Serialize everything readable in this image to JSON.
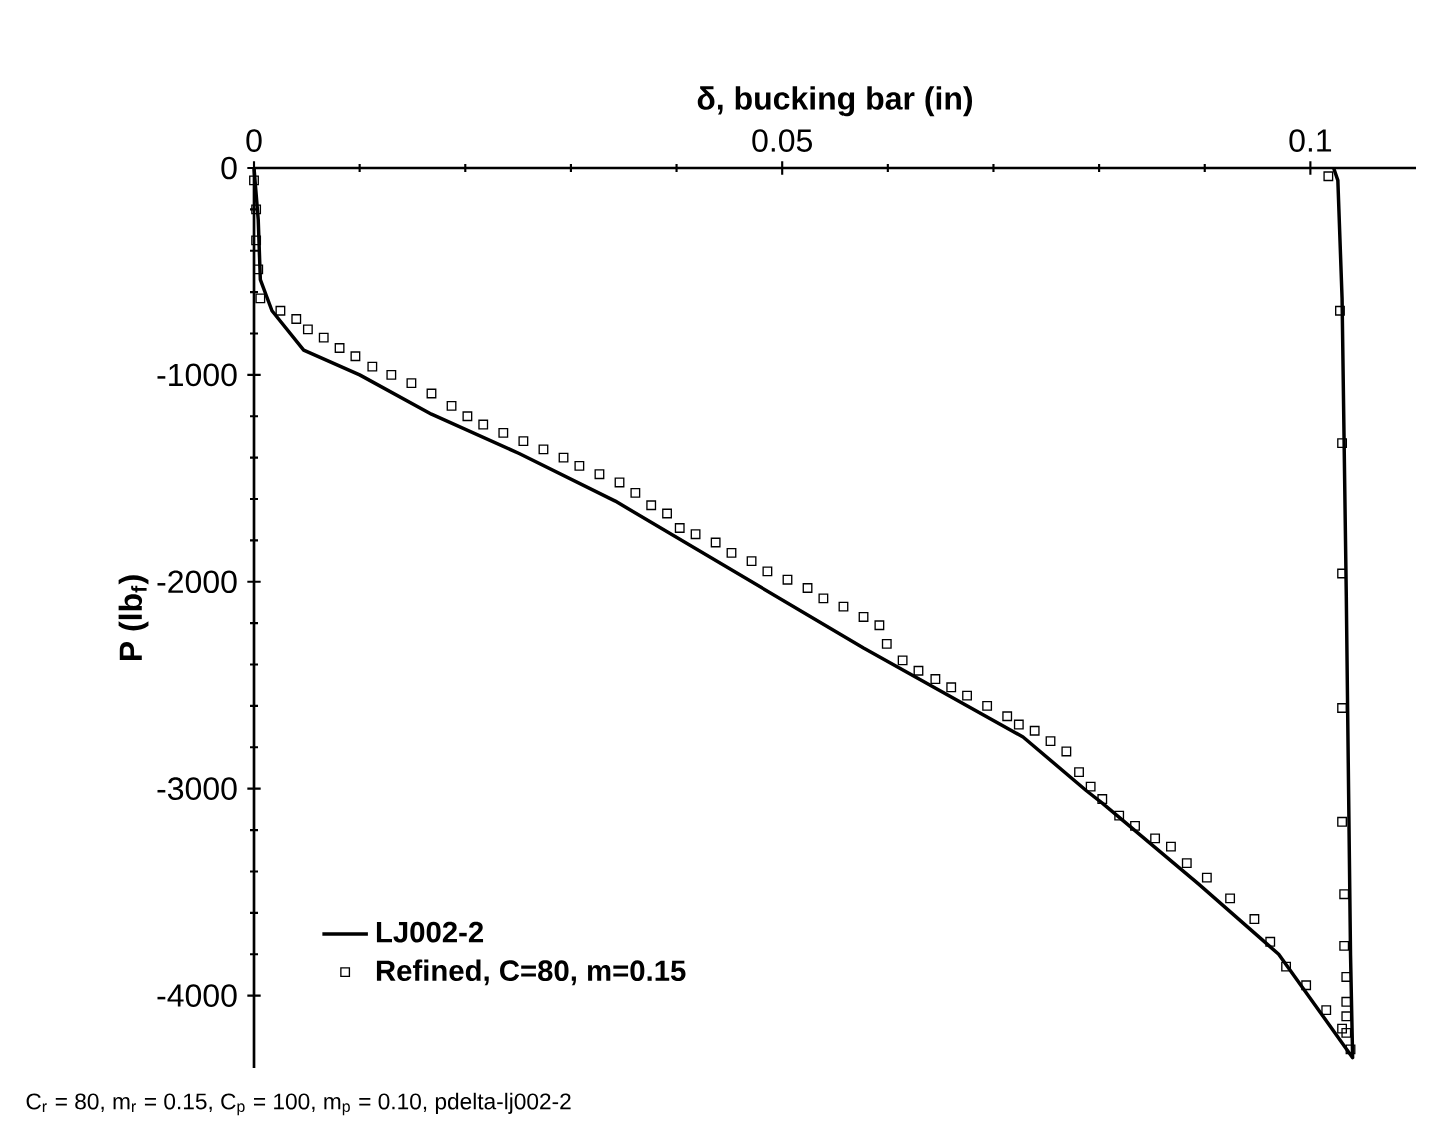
{
  "chart_data": {
    "type": "line",
    "xlabel": "δ, bucking bar (in)",
    "ylabel": "P (lb$_{f}$)",
    "xlim": [
      0,
      0.11
    ],
    "ylim": [
      -4350,
      0
    ],
    "xticks": [
      0,
      0.05,
      0.1
    ],
    "yticks": [
      0,
      -1000,
      -2000,
      -3000,
      -4000
    ],
    "legend": "bottom left",
    "grid": false,
    "annotations": [
      "C$_{r}$ = 80, m$_{r}$ = 0.15, C$_{p}$ = 100, m$_{p}$ = 0.10, pdelta-lj002-2"
    ],
    "series": [
      {
        "name": "LJ002-2",
        "type": "line",
        "color": "#000000",
        "marker": "none",
        "line_style": "solid",
        "x": [
          0,
          0.0004,
          0.0006,
          0.0017,
          0.0047,
          0.01,
          0.0168,
          0.0251,
          0.0342,
          0.0577,
          0.0728,
          0.0788,
          0.0803,
          0.0894,
          0.097,
          0.104,
          0.1038,
          0.1034,
          0.103,
          0.1026,
          0.1022
        ],
        "values": [
          0,
          -250,
          -540,
          -690,
          -880,
          -1000,
          -1190,
          -1380,
          -1610,
          -2320,
          -2750,
          -3010,
          -3070,
          -3460,
          -3800,
          -4300,
          -3800,
          -2070,
          -630,
          -60,
          0
        ]
      },
      {
        "name": "Refined, C=80, m=0.15",
        "type": "scatter",
        "color": "#000000",
        "marker": "square",
        "x": [
          0,
          0.0002,
          0.0002,
          0.0004,
          0.0006,
          0.0025,
          0.004,
          0.0051,
          0.0066,
          0.0081,
          0.0096,
          0.0112,
          0.013,
          0.0149,
          0.0168,
          0.0187,
          0.0202,
          0.0217,
          0.0236,
          0.0255,
          0.0274,
          0.0293,
          0.0308,
          0.0327,
          0.0346,
          0.0361,
          0.0376,
          0.0391,
          0.0403,
          0.0418,
          0.0437,
          0.0452,
          0.0471,
          0.0486,
          0.0505,
          0.0524,
          0.0539,
          0.0558,
          0.0577,
          0.0592,
          0.0599,
          0.0614,
          0.0629,
          0.0645,
          0.066,
          0.0675,
          0.0694,
          0.0713,
          0.0724,
          0.0739,
          0.0754,
          0.0769,
          0.0781,
          0.0792,
          0.0803,
          0.0819,
          0.0834,
          0.0853,
          0.0868,
          0.0883,
          0.0902,
          0.0924,
          0.0947,
          0.0962,
          0.0977,
          0.0996,
          0.1015,
          0.103,
          0.1038,
          0.1034,
          0.1034,
          0.1034,
          0.1034,
          0.1032,
          0.1032,
          0.103,
          0.103,
          0.103,
          0.103,
          0.1028,
          0.1017
        ],
        "values": [
          -60,
          -200,
          -350,
          -490,
          -630,
          -690,
          -730,
          -780,
          -820,
          -870,
          -910,
          -960,
          -1000,
          -1040,
          -1090,
          -1150,
          -1200,
          -1240,
          -1280,
          -1320,
          -1360,
          -1400,
          -1440,
          -1480,
          -1520,
          -1570,
          -1630,
          -1670,
          -1740,
          -1770,
          -1810,
          -1860,
          -1900,
          -1950,
          -1990,
          -2030,
          -2080,
          -2120,
          -2170,
          -2210,
          -2300,
          -2380,
          -2430,
          -2470,
          -2510,
          -2550,
          -2600,
          -2650,
          -2690,
          -2720,
          -2770,
          -2820,
          -2920,
          -2990,
          -3050,
          -3130,
          -3180,
          -3240,
          -3280,
          -3360,
          -3430,
          -3530,
          -3630,
          -3740,
          -3860,
          -3950,
          -4070,
          -4160,
          -4260,
          -4180,
          -4100,
          -4030,
          -3910,
          -3760,
          -3510,
          -3160,
          -2610,
          -1960,
          -1330,
          -690,
          -40
        ]
      }
    ]
  }
}
